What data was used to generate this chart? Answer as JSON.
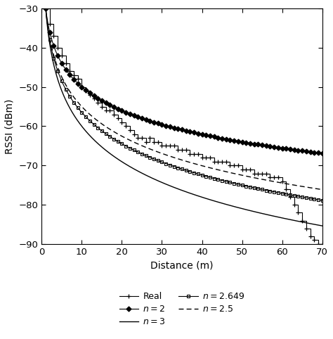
{
  "title": "",
  "xlabel": "Distance (m)",
  "ylabel": "RSSI (dBm)",
  "xlim": [
    0,
    70
  ],
  "ylim": [
    -90,
    -30
  ],
  "xticks": [
    0,
    10,
    20,
    30,
    40,
    50,
    60,
    70
  ],
  "yticks": [
    -90,
    -80,
    -70,
    -60,
    -50,
    -40,
    -30
  ],
  "rssi_ref": -30,
  "d_ref": 1.0,
  "n_values": [
    2.0,
    3.0,
    2.5,
    2.649
  ],
  "real_x": [
    1,
    2,
    3,
    4,
    5,
    6,
    7,
    8,
    9,
    10,
    11,
    12,
    13,
    14,
    15,
    16,
    17,
    18,
    19,
    20,
    21,
    22,
    23,
    24,
    25,
    26,
    27,
    28,
    29,
    30,
    31,
    32,
    33,
    34,
    35,
    36,
    37,
    38,
    39,
    40,
    41,
    42,
    43,
    44,
    45,
    46,
    47,
    48,
    49,
    50,
    51,
    52,
    53,
    54,
    55,
    56,
    57,
    58,
    59,
    60,
    61,
    62,
    63,
    64,
    65,
    66,
    67,
    68,
    69,
    70
  ],
  "real_y": [
    -30,
    -34,
    -37,
    -40,
    -42,
    -44,
    -46,
    -47,
    -48,
    -50,
    -51,
    -52,
    -53,
    -54,
    -55,
    -56,
    -56,
    -57,
    -58,
    -59,
    -60,
    -61,
    -62,
    -63,
    -63,
    -64,
    -63,
    -64,
    -64,
    -65,
    -65,
    -65,
    -65,
    -66,
    -66,
    -66,
    -67,
    -67,
    -67,
    -68,
    -68,
    -68,
    -69,
    -69,
    -69,
    -69,
    -70,
    -70,
    -70,
    -71,
    -71,
    -71,
    -72,
    -72,
    -72,
    -72,
    -73,
    -73,
    -73,
    -74,
    -76,
    -78,
    -80,
    -82,
    -84,
    -86,
    -88,
    -89,
    -90,
    -90
  ],
  "bg_color": "white",
  "figsize": [
    4.74,
    4.82
  ],
  "dpi": 100
}
